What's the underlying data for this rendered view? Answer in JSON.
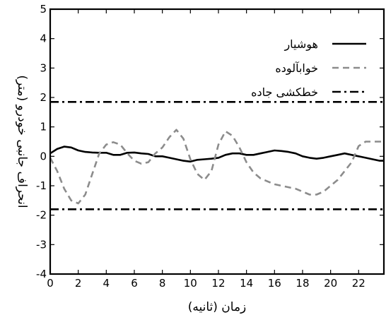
{
  "chart_data": {
    "type": "line",
    "xlabel": "زمان (ثانیه)",
    "ylabel": "انحراف جانبی خودرو (متر)",
    "xlim": [
      0,
      23.8
    ],
    "ylim": [
      -4,
      5
    ],
    "xticks": [
      0,
      2,
      4,
      6,
      8,
      10,
      12,
      14,
      16,
      18,
      20,
      22
    ],
    "yticks": [
      -4,
      -3,
      -2,
      -1,
      0,
      1,
      2,
      3,
      4,
      5
    ],
    "grid": false,
    "legend_position": "top-right",
    "series": [
      {
        "name": "هوشیار",
        "color": "#000000",
        "style": "solid",
        "x": [
          0,
          0.5,
          1,
          1.5,
          2,
          2.5,
          3,
          3.5,
          4,
          4.5,
          5,
          5.5,
          6,
          6.5,
          7,
          7.5,
          8,
          8.5,
          9,
          9.5,
          10,
          10.5,
          11,
          11.5,
          12,
          12.5,
          13,
          13.5,
          14,
          14.5,
          15,
          15.5,
          16,
          16.5,
          17,
          17.5,
          18,
          18.5,
          19,
          19.5,
          20,
          20.5,
          21,
          21.5,
          22,
          22.5,
          23,
          23.5,
          23.8
        ],
        "y": [
          0.1,
          0.25,
          0.33,
          0.3,
          0.2,
          0.15,
          0.13,
          0.12,
          0.12,
          0.05,
          0.05,
          0.12,
          0.13,
          0.1,
          0.08,
          0.0,
          0.0,
          -0.05,
          -0.1,
          -0.15,
          -0.18,
          -0.12,
          -0.1,
          -0.08,
          -0.05,
          0.05,
          0.1,
          0.1,
          0.05,
          0.05,
          0.1,
          0.15,
          0.2,
          0.18,
          0.15,
          0.1,
          0.0,
          -0.05,
          -0.08,
          -0.05,
          0.0,
          0.05,
          0.1,
          0.05,
          0.0,
          -0.05,
          -0.1,
          -0.15,
          -0.15
        ],
        "legend_label": "هوشیار"
      },
      {
        "name": "خوابآلوده",
        "color": "#8c8c8c",
        "style": "dashed",
        "x": [
          0,
          0.5,
          1,
          1.5,
          2,
          2.5,
          3,
          3.5,
          4,
          4.5,
          5,
          5.5,
          6,
          6.5,
          7,
          7.5,
          8,
          8.5,
          9,
          9.5,
          10,
          10.5,
          11,
          11.5,
          12,
          12.5,
          13,
          13.5,
          14,
          14.5,
          15,
          15.5,
          16,
          16.5,
          17,
          17.5,
          18,
          18.5,
          19,
          19.5,
          20,
          20.5,
          21,
          21.5,
          22,
          22.5,
          23,
          23.5,
          23.8
        ],
        "y": [
          -0.05,
          -0.5,
          -1.1,
          -1.5,
          -1.6,
          -1.3,
          -0.6,
          0.1,
          0.4,
          0.48,
          0.4,
          0.1,
          -0.15,
          -0.25,
          -0.2,
          0.1,
          0.3,
          0.65,
          0.9,
          0.6,
          -0.1,
          -0.6,
          -0.8,
          -0.5,
          0.4,
          0.85,
          0.7,
          0.3,
          -0.2,
          -0.55,
          -0.75,
          -0.85,
          -0.95,
          -1.0,
          -1.05,
          -1.1,
          -1.2,
          -1.3,
          -1.3,
          -1.2,
          -1.0,
          -0.8,
          -0.5,
          -0.2,
          0.35,
          0.5,
          0.5,
          0.5,
          0.5
        ],
        "legend_label": "خوابآلوده"
      },
      {
        "name": "خطکشی جاده",
        "color": "#000000",
        "style": "dashdot",
        "x": [
          0,
          23.8
        ],
        "y": [
          1.85,
          1.85
        ],
        "legend_label": "خطکشی جاده"
      },
      {
        "name": "خطکشی جاده (پایین)",
        "color": "#000000",
        "style": "dashdot",
        "x": [
          0,
          23.8
        ],
        "y": [
          -1.8,
          -1.8
        ]
      }
    ]
  }
}
